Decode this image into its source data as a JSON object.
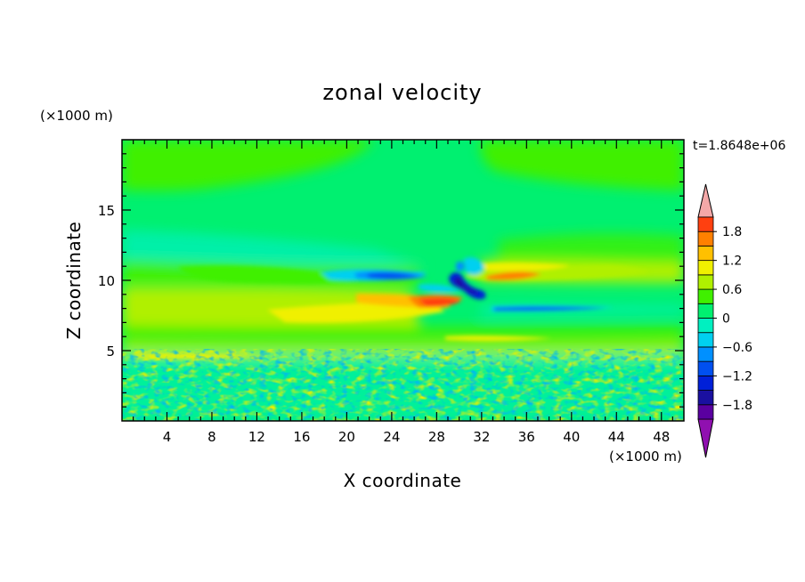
{
  "chart_data": {
    "type": "heatmap",
    "title": "zonal velocity",
    "xlabel": "X coordinate",
    "ylabel": "Z coordinate",
    "x_unit": "(×1000 m)",
    "y_unit": "(×1000 m)",
    "time_label": "t=1.8648e+06",
    "xlim": [
      0,
      50
    ],
    "ylim": [
      0,
      20
    ],
    "x_ticks": [
      4,
      8,
      12,
      16,
      20,
      24,
      28,
      32,
      36,
      40,
      44,
      48
    ],
    "x_tick_labels": [
      "4",
      "8",
      "12",
      "16",
      "20",
      "24",
      "28",
      "32",
      "36",
      "40",
      "44",
      "48"
    ],
    "y_ticks": [
      5,
      10,
      15
    ],
    "y_tick_labels": [
      "5",
      "10",
      "15"
    ],
    "colorbar": {
      "levels": [
        -2.1,
        -1.8,
        -1.5,
        -1.2,
        -0.9,
        -0.6,
        -0.3,
        0,
        0.3,
        0.6,
        0.9,
        1.2,
        1.5,
        1.8,
        2.1
      ],
      "colors": [
        "#5a00a0",
        "#1a10a0",
        "#0020d8",
        "#0050f0",
        "#0090ff",
        "#00d0f0",
        "#00f0c0",
        "#00f070",
        "#40f000",
        "#b0f000",
        "#f0f000",
        "#ffc000",
        "#ff8000",
        "#ff4010",
        "#ff1010"
      ],
      "under_color": "#9010b0",
      "over_color": "#f4a8a8",
      "tick_values": [
        1.8,
        1.2,
        0.6,
        0,
        -0.6,
        -1.2,
        -1.8
      ],
      "tick_labels": [
        "1.8",
        "1.2",
        "0.6",
        "0",
        "−0.6",
        "−1.2",
        "−1.8"
      ]
    }
  }
}
